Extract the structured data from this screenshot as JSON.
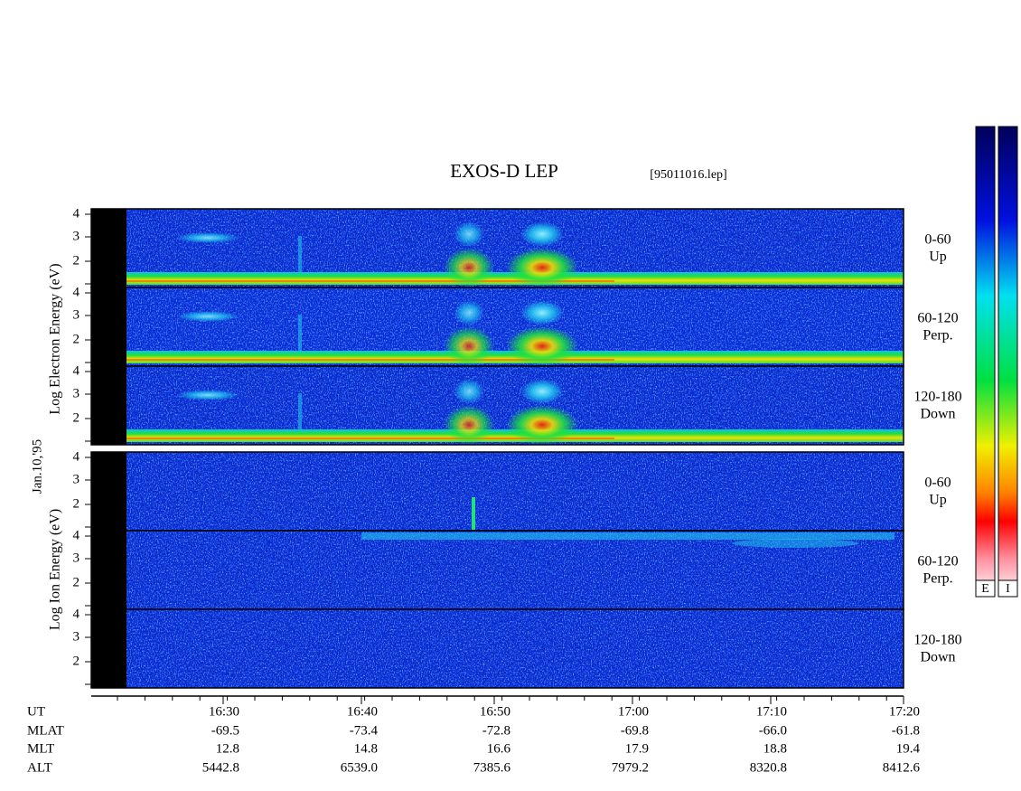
{
  "title": "EXOS-D LEP",
  "file": "[95011016.lep]",
  "date": "Jan.10,'95",
  "electron": {
    "axis_label": "Log Electron Energy (eV)",
    "panels": [
      {
        "range": "0-60",
        "direction": "Up",
        "yticks": [
          "4",
          "3",
          "2"
        ]
      },
      {
        "range": "60-120",
        "direction": "Perp.",
        "yticks": [
          "4",
          "3",
          "2"
        ]
      },
      {
        "range": "120-180",
        "direction": "Down",
        "yticks": [
          "4",
          "3",
          "2"
        ]
      }
    ]
  },
  "ion": {
    "axis_label": "Log Ion Energy (eV)",
    "panels": [
      {
        "range": "0-60",
        "direction": "Up",
        "yticks": [
          "4",
          "3",
          "2"
        ]
      },
      {
        "range": "60-120",
        "direction": "Perp.",
        "yticks": [
          "4",
          "3",
          "2"
        ]
      },
      {
        "range": "120-180",
        "direction": "Down",
        "yticks": [
          "4",
          "3",
          "2"
        ]
      }
    ]
  },
  "colorbar": {
    "labels": [
      "E",
      "I"
    ]
  },
  "footer": {
    "row_labels": [
      "UT",
      "MLAT",
      "MLT",
      "ALT"
    ],
    "columns": [
      [
        "16:30",
        "-69.5",
        "12.8",
        "5442.8"
      ],
      [
        "16:40",
        "-73.4",
        "14.8",
        "6539.0"
      ],
      [
        "16:50",
        "-72.8",
        "16.6",
        "7385.6"
      ],
      [
        "17:00",
        "-69.8",
        "17.9",
        "7979.2"
      ],
      [
        "17:10",
        "-66.0",
        "18.8",
        "8320.8"
      ],
      [
        "17:20",
        "-61.8",
        "19.4",
        "8412.6"
      ]
    ]
  }
}
